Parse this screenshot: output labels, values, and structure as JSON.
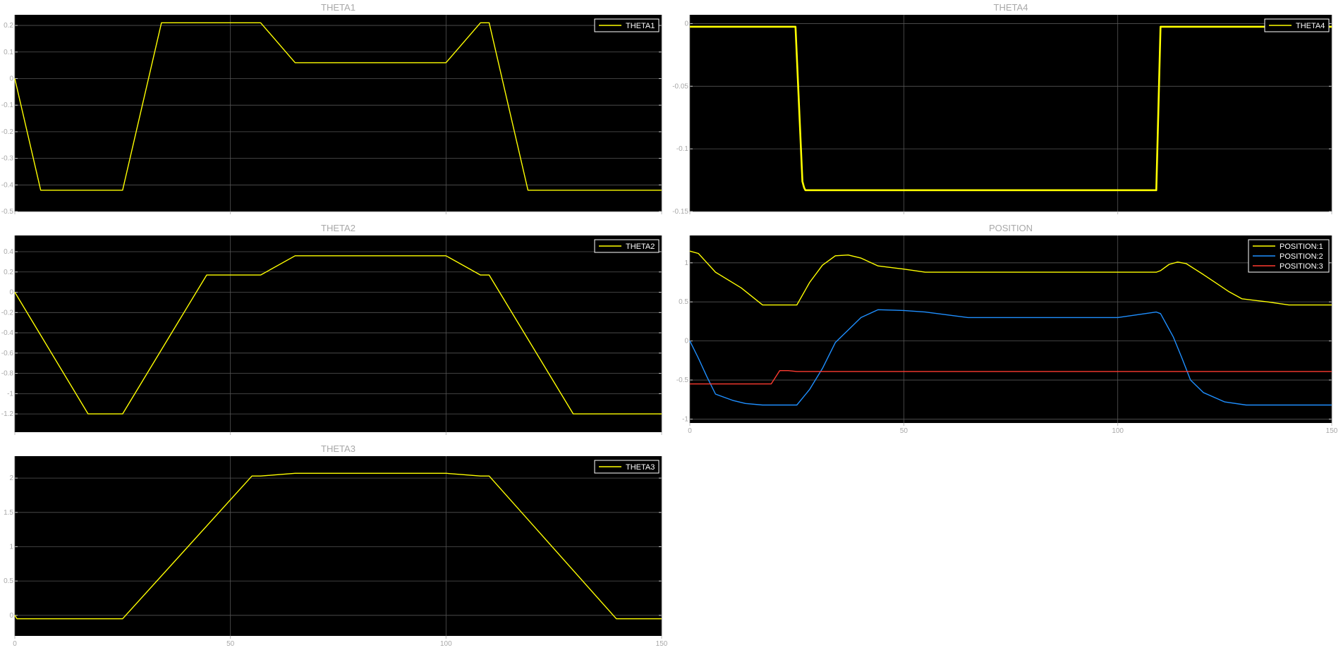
{
  "chart_data": [
    {
      "type": "line",
      "title": "THETA1",
      "xlim": [
        0,
        150
      ],
      "ylim": [
        -0.5,
        0.24
      ],
      "x_ticks": [
        0,
        50,
        100,
        150
      ],
      "x_tick_labels": [
        "",
        "",
        "",
        ""
      ],
      "y_ticks": [
        0.2,
        0.1,
        0,
        -0.1,
        -0.2,
        -0.3,
        -0.4,
        -0.5
      ],
      "y_tick_labels": [
        "0.2",
        "0.1",
        "0",
        "-0.1",
        "-0.2",
        "-0.3",
        "-0.4",
        "-0.5"
      ],
      "grid": true,
      "legend_position": "top-right",
      "series": [
        {
          "name": "THETA1",
          "color": "#ffff00",
          "x": [
            0,
            6,
            25,
            34,
            57,
            65,
            100,
            108,
            110,
            119,
            150
          ],
          "y": [
            0,
            -0.42,
            -0.42,
            0.21,
            0.21,
            0.06,
            0.06,
            0.21,
            0.21,
            -0.42,
            -0.42
          ]
        }
      ]
    },
    {
      "type": "line",
      "title": "THETA4",
      "xlim": [
        0,
        150
      ],
      "ylim": [
        -0.15,
        0.007
      ],
      "x_ticks": [
        0,
        50,
        100,
        150
      ],
      "x_tick_labels": [
        "",
        "",
        "",
        ""
      ],
      "y_ticks": [
        0,
        -0.05,
        -0.1,
        -0.15
      ],
      "y_tick_labels": [
        "0",
        "-0.05",
        "-0.1",
        "-0.15"
      ],
      "grid": true,
      "legend_position": "top-right",
      "series": [
        {
          "name": "THETA4",
          "color": "#ffff00",
          "x": [
            0,
            24.7,
            26.3,
            26.7,
            27,
            109,
            110,
            150
          ],
          "y": [
            -0.0025,
            -0.0025,
            -0.126,
            -0.131,
            -0.133,
            -0.133,
            -0.0025,
            -0.0025
          ]
        }
      ]
    },
    {
      "type": "line",
      "title": "THETA2",
      "xlim": [
        0,
        150
      ],
      "ylim": [
        -1.38,
        0.56
      ],
      "x_ticks": [
        0,
        50,
        100,
        150
      ],
      "x_tick_labels": [
        "",
        "",
        "",
        ""
      ],
      "y_ticks": [
        0.4,
        0.2,
        0,
        -0.2,
        -0.4,
        -0.6,
        -0.8,
        -1,
        -1.2
      ],
      "y_tick_labels": [
        "0.4",
        "0.2",
        "0",
        "-0.2",
        "-0.4",
        "-0.6",
        "-0.8",
        "-1",
        "-1.2"
      ],
      "grid": true,
      "legend_position": "top-right",
      "series": [
        {
          "name": "THETA2",
          "color": "#ffff00",
          "x": [
            0,
            17,
            25,
            44.5,
            57,
            65,
            100,
            108,
            110,
            129.5,
            150
          ],
          "y": [
            0,
            -1.2,
            -1.2,
            0.17,
            0.17,
            0.36,
            0.36,
            0.17,
            0.17,
            -1.2,
            -1.2
          ]
        }
      ]
    },
    {
      "type": "line",
      "title": "POSITION",
      "xlim": [
        0,
        150
      ],
      "ylim": [
        -1.05,
        1.35
      ],
      "x_ticks": [
        0,
        50,
        100,
        150
      ],
      "x_tick_labels": [
        "0",
        "50",
        "100",
        "150"
      ],
      "y_ticks": [
        1,
        0.5,
        0,
        -0.5,
        -1
      ],
      "y_tick_labels": [
        "1",
        "0.5",
        "0",
        "-0.5",
        "-1"
      ],
      "grid": true,
      "legend_position": "top-right",
      "series": [
        {
          "name": "POSITION:1",
          "color": "#ffff00",
          "x": [
            0,
            2,
            4,
            6,
            12,
            17,
            25,
            28,
            31,
            34,
            37,
            40,
            44,
            50,
            55,
            65,
            100,
            109,
            110,
            112,
            114,
            116,
            118,
            120,
            123,
            126,
            129,
            135,
            140,
            150
          ],
          "y": [
            1.15,
            1.12,
            1.0,
            0.88,
            0.68,
            0.46,
            0.46,
            0.75,
            0.97,
            1.09,
            1.1,
            1.06,
            0.96,
            0.92,
            0.88,
            0.88,
            0.88,
            0.88,
            0.9,
            0.98,
            1.01,
            0.99,
            0.92,
            0.85,
            0.74,
            0.63,
            0.54,
            0.5,
            0.46,
            0.46
          ]
        },
        {
          "name": "POSITION:2",
          "color": "#1f8fff",
          "x": [
            0,
            2,
            4,
            6,
            10,
            13,
            17,
            25,
            28,
            31,
            34,
            37,
            40,
            44,
            50,
            55,
            65,
            100,
            109,
            110,
            113,
            115,
            117,
            120,
            125,
            130,
            150
          ],
          "y": [
            0.0,
            -0.22,
            -0.46,
            -0.68,
            -0.76,
            -0.8,
            -0.82,
            -0.82,
            -0.62,
            -0.35,
            -0.02,
            0.14,
            0.3,
            0.4,
            0.39,
            0.37,
            0.3,
            0.3,
            0.37,
            0.35,
            0.05,
            -0.22,
            -0.5,
            -0.66,
            -0.78,
            -0.82,
            -0.82
          ]
        },
        {
          "name": "POSITION:3",
          "color": "#ff3b30",
          "x": [
            0,
            19,
            21,
            23,
            25,
            150
          ],
          "y": [
            -0.55,
            -0.55,
            -0.38,
            -0.38,
            -0.39,
            -0.39
          ]
        }
      ]
    },
    {
      "type": "line",
      "title": "THETA3",
      "xlim": [
        0,
        150
      ],
      "ylim": [
        -0.3,
        2.32
      ],
      "x_ticks": [
        0,
        50,
        100,
        150
      ],
      "x_tick_labels": [
        "0",
        "50",
        "100",
        "150"
      ],
      "y_ticks": [
        2,
        1.5,
        1,
        0.5,
        0
      ],
      "y_tick_labels": [
        "2",
        "1.5",
        "1",
        "0.5",
        "0"
      ],
      "grid": true,
      "legend_position": "top-right",
      "series": [
        {
          "name": "THETA3",
          "color": "#ffff00",
          "x": [
            0,
            0.5,
            25,
            55,
            57,
            65,
            100,
            108,
            110,
            139.5,
            150
          ],
          "y": [
            0,
            -0.05,
            -0.05,
            2.03,
            2.03,
            2.07,
            2.07,
            2.03,
            2.03,
            -0.05,
            -0.05
          ]
        }
      ]
    }
  ]
}
